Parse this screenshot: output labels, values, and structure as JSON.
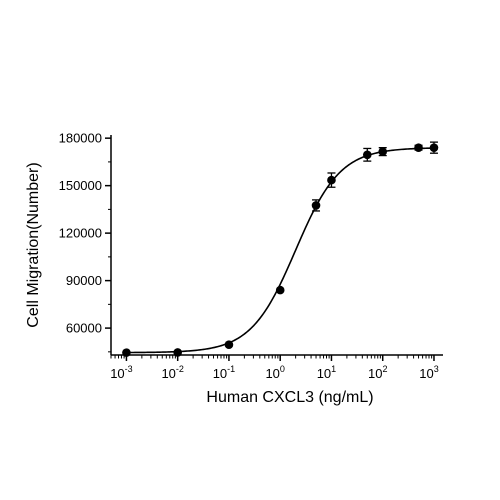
{
  "chart_data": {
    "type": "scatter",
    "xlabel": "Human CXCL3 (ng/mL)",
    "ylabel": "Cell Migration(Number)",
    "xscale": "log",
    "xlim": [
      0.0005,
      1500
    ],
    "ylim": [
      43000,
      182000
    ],
    "x_ticks": [
      {
        "base": "10",
        "exp": "-3",
        "value": 0.001
      },
      {
        "base": "10",
        "exp": "-2",
        "value": 0.01
      },
      {
        "base": "10",
        "exp": "-1",
        "value": 0.1
      },
      {
        "base": "10",
        "exp": "0",
        "value": 1
      },
      {
        "base": "10",
        "exp": "1",
        "value": 10
      },
      {
        "base": "10",
        "exp": "2",
        "value": 100
      },
      {
        "base": "10",
        "exp": "3",
        "value": 1000
      }
    ],
    "y_ticks": [
      {
        "label": "60000",
        "value": 60000
      },
      {
        "label": "90000",
        "value": 90000
      },
      {
        "label": "120000",
        "value": 120000
      },
      {
        "label": "150000",
        "value": 150000
      },
      {
        "label": "180000",
        "value": 180000
      }
    ],
    "points": [
      {
        "x": 0.001,
        "y": 44500,
        "err": 0
      },
      {
        "x": 0.01,
        "y": 44600,
        "err": 0
      },
      {
        "x": 0.1,
        "y": 49500,
        "err": 0
      },
      {
        "x": 1,
        "y": 84000,
        "err": 0
      },
      {
        "x": 5,
        "y": 137500,
        "err": 3500
      },
      {
        "x": 10,
        "y": 153500,
        "err": 4500
      },
      {
        "x": 50,
        "y": 169500,
        "err": 4000
      },
      {
        "x": 100,
        "y": 171500,
        "err": 2500
      },
      {
        "x": 500,
        "y": 174000,
        "err": 1500
      },
      {
        "x": 1000,
        "y": 174000,
        "err": 3500
      }
    ],
    "curve": {
      "type": "4PL",
      "bottom": 44500,
      "top": 174000,
      "ec50": 2.0,
      "hill": 1.0
    },
    "grid": false,
    "legend": "none",
    "marker_color": "#000000",
    "line_color": "#000000"
  }
}
